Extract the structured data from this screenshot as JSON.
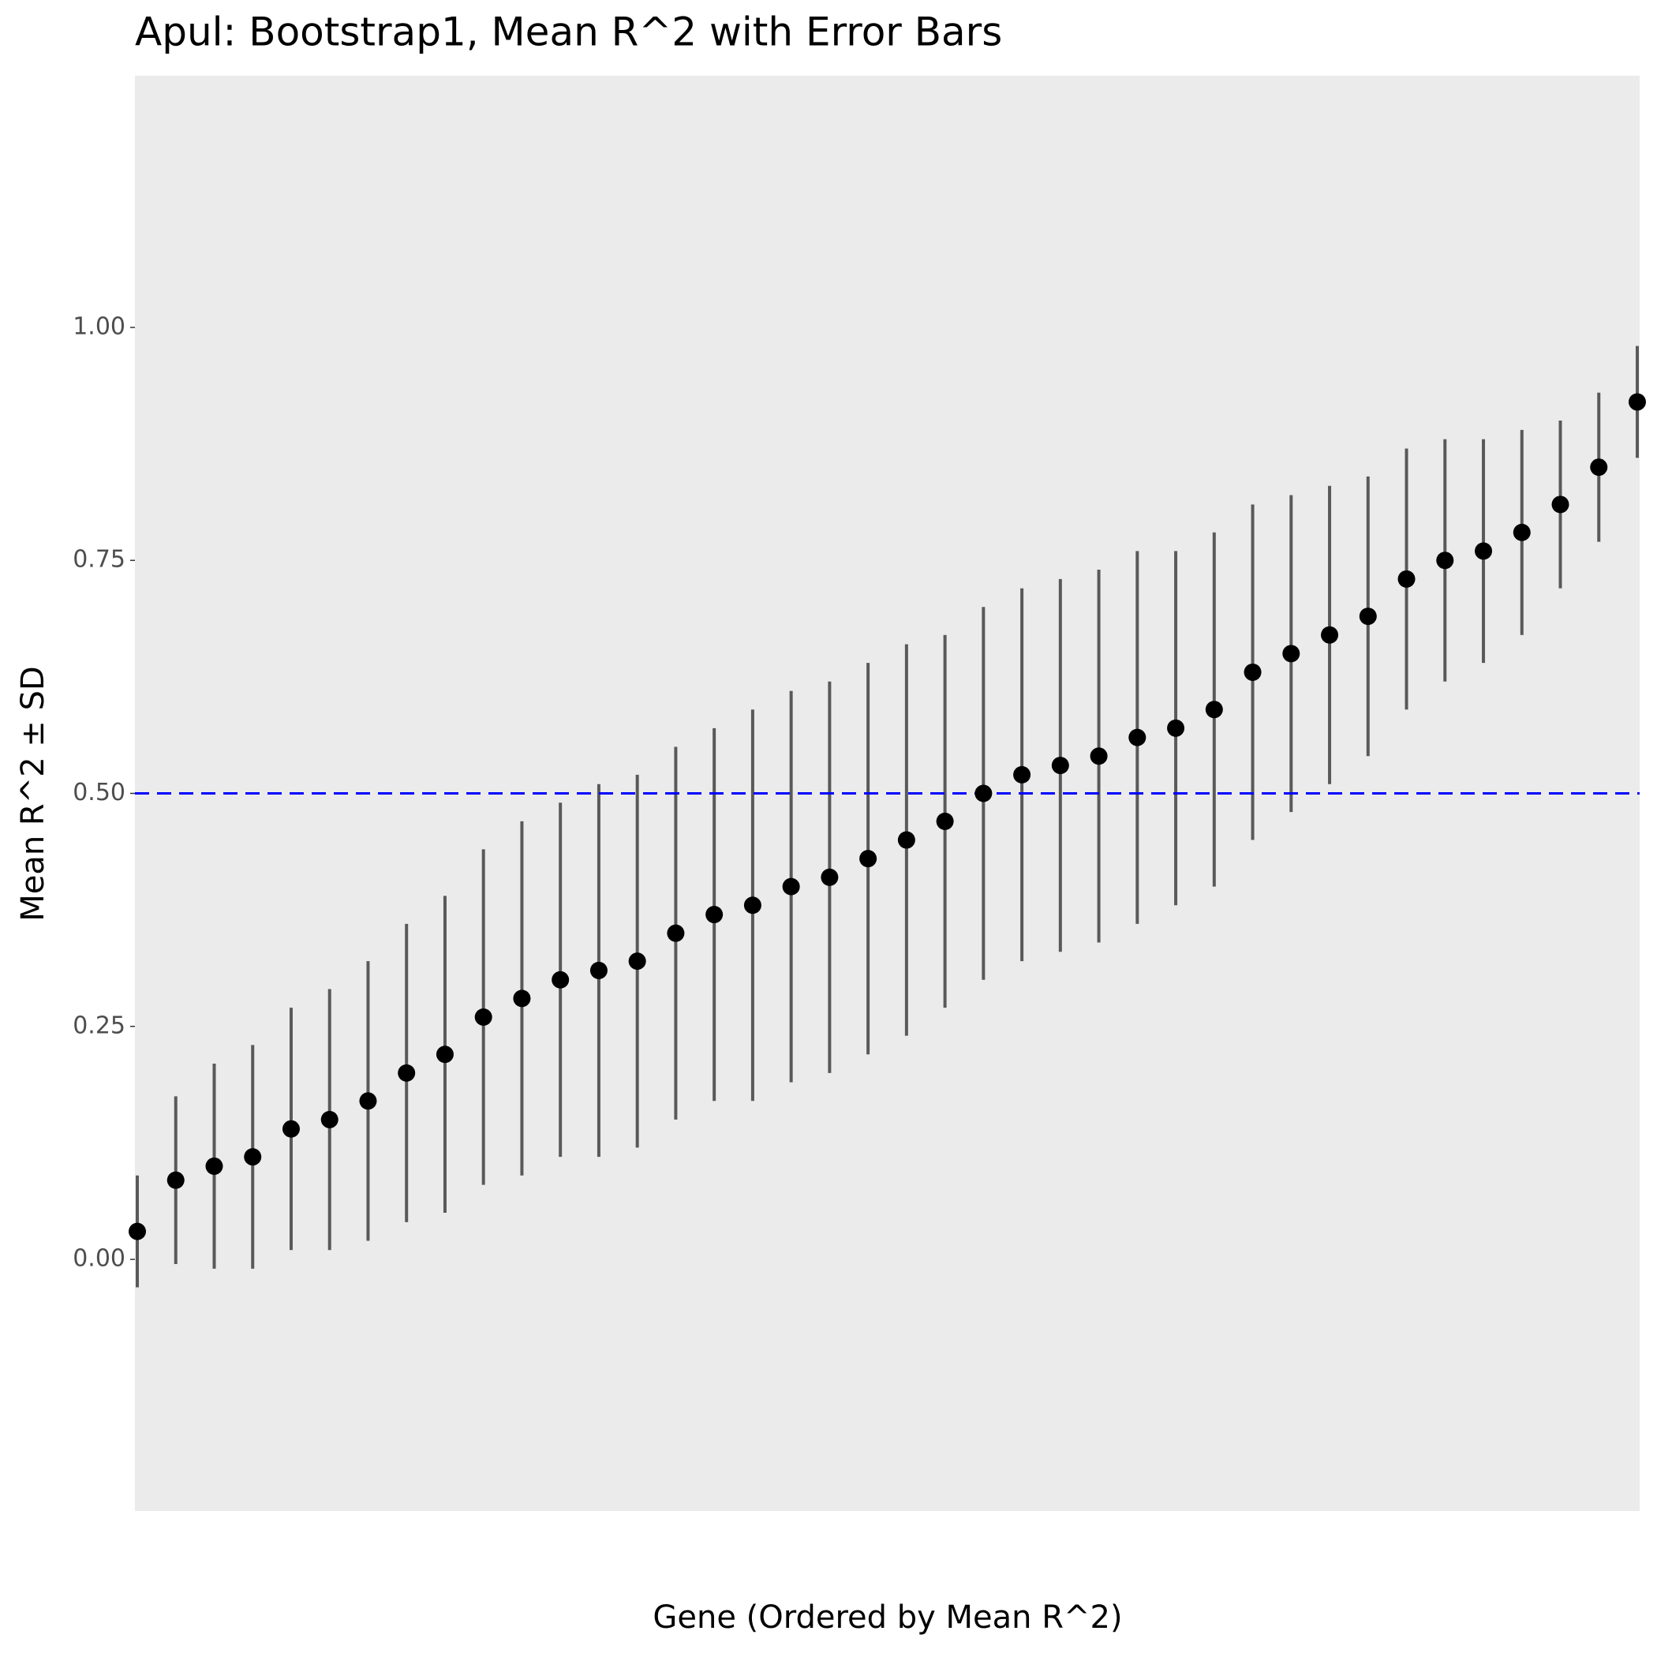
{
  "chart_data": {
    "type": "errorbar",
    "title": "Apul: Bootstrap1, Mean R^2 with Error Bars",
    "x_label": "Gene (Ordered by Mean R^2)",
    "y_label": "Mean R^2 ± SD",
    "categories": [
      null,
      null,
      null,
      null,
      null,
      null,
      null,
      null,
      null,
      null,
      null,
      null,
      null,
      null,
      null,
      null,
      null,
      null,
      null,
      null,
      null,
      null,
      null,
      null,
      null,
      null,
      null,
      null,
      null,
      null,
      null,
      null,
      null,
      null,
      null,
      null,
      null,
      null,
      null,
      null
    ],
    "series": [
      {
        "color": "#000000",
        "error_color": "#595959",
        "values": [
          0.03,
          0.085,
          0.1,
          0.11,
          0.14,
          0.15,
          0.17,
          0.2,
          0.22,
          0.26,
          0.28,
          0.3,
          0.31,
          0.32,
          0.35,
          0.37,
          0.38,
          0.4,
          0.41,
          0.43,
          0.45,
          0.47,
          0.5,
          0.52,
          0.53,
          0.54,
          0.56,
          0.57,
          0.59,
          0.63,
          0.65,
          0.67,
          0.69,
          0.73,
          0.75,
          0.76,
          0.78,
          0.81,
          0.85,
          0.92
        ],
        "errors": [
          0.06,
          0.09,
          0.11,
          0.12,
          0.13,
          0.14,
          0.15,
          0.16,
          0.17,
          0.18,
          0.19,
          0.19,
          0.2,
          0.2,
          0.2,
          0.2,
          0.21,
          0.21,
          0.21,
          0.21,
          0.21,
          0.2,
          0.2,
          0.2,
          0.2,
          0.2,
          0.2,
          0.19,
          0.19,
          0.18,
          0.17,
          0.16,
          0.15,
          0.14,
          0.13,
          0.12,
          0.11,
          0.09,
          0.08,
          0.06
        ]
      }
    ],
    "reference_line": {
      "value": 0.5,
      "color": "#0000ff",
      "dashed": true
    },
    "ylim": [
      -0.27,
      1.27
    ],
    "yticks": [
      {
        "value": 0,
        "label": "0.00"
      },
      {
        "value": 0.25,
        "label": "0.25"
      },
      {
        "value": 0.5,
        "label": "0.50"
      },
      {
        "value": 0.75,
        "label": "0.75"
      },
      {
        "value": 1,
        "label": "1.00"
      }
    ],
    "grid": false,
    "background": "#ebebeb"
  }
}
